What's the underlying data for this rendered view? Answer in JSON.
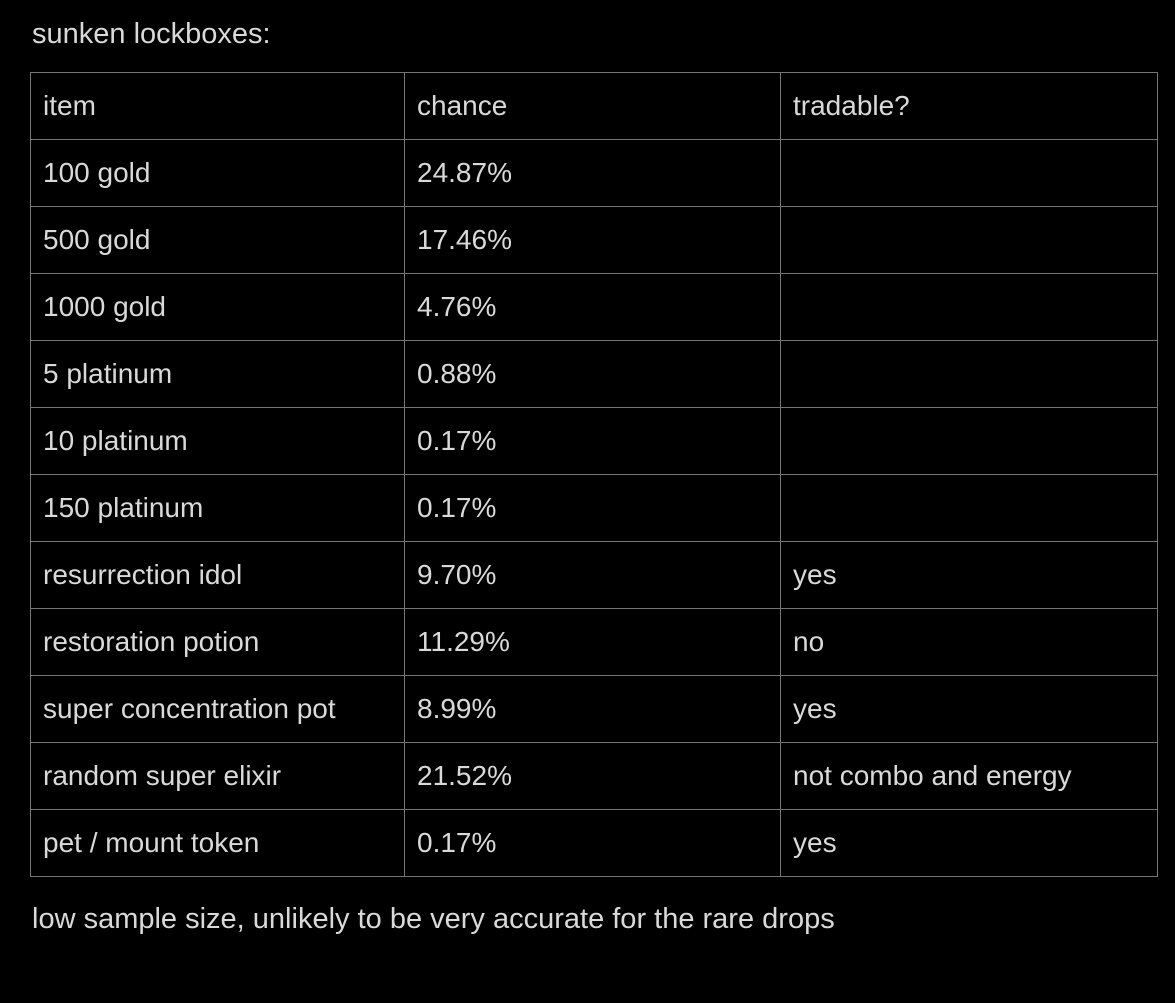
{
  "page": {
    "background_color": "#000000",
    "text_color": "#d9d9d9",
    "border_color": "#757575"
  },
  "title": "sunken lockboxes:",
  "table": {
    "columns": [
      "item",
      "chance",
      "tradable?"
    ],
    "rows": [
      {
        "item": "100 gold",
        "chance": "24.87%",
        "tradable": ""
      },
      {
        "item": "500 gold",
        "chance": "17.46%",
        "tradable": ""
      },
      {
        "item": "1000 gold",
        "chance": "4.76%",
        "tradable": ""
      },
      {
        "item": "5 platinum",
        "chance": "0.88%",
        "tradable": ""
      },
      {
        "item": "10 platinum",
        "chance": "0.17%",
        "tradable": ""
      },
      {
        "item": "150 platinum",
        "chance": "0.17%",
        "tradable": ""
      },
      {
        "item": "resurrection idol",
        "chance": "9.70%",
        "tradable": "yes"
      },
      {
        "item": "restoration potion",
        "chance": "11.29%",
        "tradable": "no"
      },
      {
        "item": "super concentration pot",
        "chance": "8.99%",
        "tradable": "yes"
      },
      {
        "item": "random super elixir",
        "chance": "21.52%",
        "tradable": "not combo and energy"
      },
      {
        "item": "pet / mount token",
        "chance": "0.17%",
        "tradable": "yes"
      }
    ]
  },
  "footer": "low sample size, unlikely to be very accurate for the rare drops"
}
